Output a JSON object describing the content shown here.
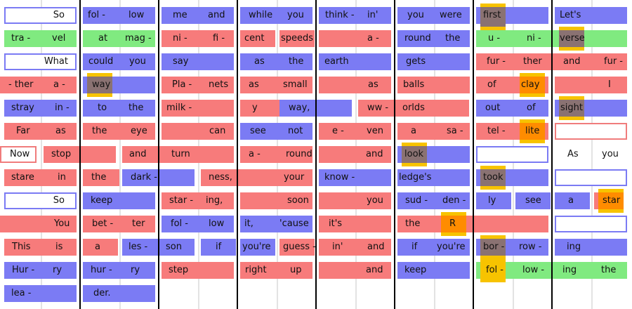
{
  "palette": {
    "pink": "#f77b7b",
    "blue": "#7b7bf4",
    "green": "#80ea80",
    "red_outline": "#f07c7c",
    "blue_outline": "#7b7bf4",
    "highlight_dark": "#8a7272",
    "highlight_gold": "#f7c300",
    "highlight_orange": "#ff8c00",
    "bar_line": "#000000",
    "guide_line": "#e3e3e3"
  },
  "rows": [
    [
      {
        "text": "So",
        "color": "blue",
        "outline": true
      },
      {
        "text": "fol -",
        "color": "blue"
      },
      {
        "text": "low",
        "color": "blue"
      },
      {
        "text": "me",
        "color": "blue"
      },
      {
        "text": "and",
        "color": "blue"
      },
      {
        "text": "while",
        "color": "blue"
      },
      {
        "text": "you",
        "color": "blue"
      },
      {
        "text": "think -",
        "color": "blue"
      },
      {
        "text": "in'",
        "color": "blue"
      },
      {
        "text": "you",
        "color": "blue"
      },
      {
        "text": "were",
        "color": "blue"
      },
      {
        "text": "first",
        "color": "blue",
        "highlight": "dark"
      },
      {
        "text": "Let's",
        "color": "blue"
      }
    ],
    [
      {
        "text": "tra -",
        "color": "green"
      },
      {
        "text": "vel",
        "color": "green"
      },
      {
        "text": "at",
        "color": "green"
      },
      {
        "text": "mag -",
        "color": "green"
      },
      {
        "text": "ni -",
        "color": "pink"
      },
      {
        "text": "fi -",
        "color": "pink"
      },
      {
        "text": "cent",
        "color": "pink"
      },
      {
        "text": "speeds",
        "color": "pink"
      },
      {
        "text": "a -",
        "color": "pink"
      },
      {
        "text": "round",
        "color": "blue"
      },
      {
        "text": "the",
        "color": "blue"
      },
      {
        "text": "u -",
        "color": "green"
      },
      {
        "text": "ni -",
        "color": "green"
      },
      {
        "text": "verse",
        "color": "green",
        "highlight": "dark"
      }
    ],
    [
      {
        "text": "What",
        "color": "blue",
        "outline": true
      },
      {
        "text": "could",
        "color": "blue"
      },
      {
        "text": "you",
        "color": "blue"
      },
      {
        "text": "say",
        "color": "blue"
      },
      {
        "text": "as",
        "color": "blue"
      },
      {
        "text": "the",
        "color": "blue"
      },
      {
        "text": "earth",
        "color": "blue"
      },
      {
        "text": "gets",
        "color": "blue"
      },
      {
        "text": "fur -",
        "color": "pink"
      },
      {
        "text": "ther",
        "color": "pink"
      },
      {
        "text": "and",
        "color": "pink"
      },
      {
        "text": "fur -",
        "color": "pink"
      }
    ],
    [
      {
        "text": "- ther",
        "color": "pink"
      },
      {
        "text": "a -",
        "color": "pink"
      },
      {
        "text": "way",
        "color": "blue",
        "highlight": "dark"
      },
      {
        "text": "Pla -",
        "color": "pink"
      },
      {
        "text": "nets",
        "color": "pink"
      },
      {
        "text": "as",
        "color": "pink"
      },
      {
        "text": "small",
        "color": "pink"
      },
      {
        "text": "as",
        "color": "pink"
      },
      {
        "text": "balls",
        "color": "pink"
      },
      {
        "text": "of",
        "color": "pink"
      },
      {
        "text": "clay",
        "color": "pink",
        "highlight": "orange"
      },
      {
        "text": "I",
        "color": "pink"
      }
    ],
    [
      {
        "text": "stray",
        "color": "blue"
      },
      {
        "text": "in -",
        "color": "blue"
      },
      {
        "text": "to",
        "color": "blue"
      },
      {
        "text": "the",
        "color": "blue"
      },
      {
        "text": "milk -",
        "color": "pink"
      },
      {
        "text": "y",
        "color": "pink"
      },
      {
        "text": "way,",
        "color": "blue"
      },
      {
        "text": "ww -",
        "color": "pink"
      },
      {
        "text": "orlds",
        "color": "pink"
      },
      {
        "text": "out",
        "color": "blue"
      },
      {
        "text": "of",
        "color": "blue"
      },
      {
        "text": "sight",
        "color": "blue",
        "highlight": "dark"
      }
    ],
    [
      {
        "text": "Far",
        "color": "pink"
      },
      {
        "text": "as",
        "color": "pink"
      },
      {
        "text": "the",
        "color": "pink"
      },
      {
        "text": "eye",
        "color": "pink"
      },
      {
        "text": "can",
        "color": "pink"
      },
      {
        "text": "see",
        "color": "blue"
      },
      {
        "text": "not",
        "color": "blue"
      },
      {
        "text": "e -",
        "color": "pink"
      },
      {
        "text": "ven",
        "color": "pink"
      },
      {
        "text": "a",
        "color": "pink"
      },
      {
        "text": "sa -",
        "color": "pink"
      },
      {
        "text": "tel -",
        "color": "pink"
      },
      {
        "text": "lite",
        "color": "pink",
        "highlight": "orange"
      }
    ],
    [
      {
        "text": "Now",
        "color": "pink",
        "outline": true
      },
      {
        "text": "stop",
        "color": "pink"
      },
      {
        "text": "and",
        "color": "pink"
      },
      {
        "text": "turn",
        "color": "pink"
      },
      {
        "text": "a -",
        "color": "pink"
      },
      {
        "text": "round",
        "color": "pink"
      },
      {
        "text": "and",
        "color": "pink"
      },
      {
        "text": "look",
        "color": "blue",
        "highlight": "dark"
      },
      {
        "text": "As",
        "color": "blue"
      },
      {
        "text": "you",
        "color": "blue"
      }
    ],
    [
      {
        "text": "stare",
        "color": "pink"
      },
      {
        "text": "in",
        "color": "pink"
      },
      {
        "text": "the",
        "color": "pink"
      },
      {
        "text": "dark -",
        "color": "blue"
      },
      {
        "text": "ness,",
        "color": "pink"
      },
      {
        "text": "your",
        "color": "pink"
      },
      {
        "text": "know -",
        "color": "blue"
      },
      {
        "text": "ledge's",
        "color": "blue"
      },
      {
        "text": "took",
        "color": "blue",
        "highlight": "dark"
      }
    ],
    [
      {
        "text": "So",
        "color": "blue",
        "outline": true
      },
      {
        "text": "keep",
        "color": "blue"
      },
      {
        "text": "star -",
        "color": "pink"
      },
      {
        "text": "ing,",
        "color": "pink"
      },
      {
        "text": "soon",
        "color": "pink"
      },
      {
        "text": "you",
        "color": "pink"
      },
      {
        "text": "sud -",
        "color": "blue"
      },
      {
        "text": "den -",
        "color": "blue"
      },
      {
        "text": "ly",
        "color": "blue"
      },
      {
        "text": "see",
        "color": "blue"
      },
      {
        "text": "a",
        "color": "blue"
      },
      {
        "text": "star",
        "color": "pink",
        "highlight": "orange"
      }
    ],
    [
      {
        "text": "You",
        "color": "pink"
      },
      {
        "text": "bet -",
        "color": "pink"
      },
      {
        "text": "ter",
        "color": "pink"
      },
      {
        "text": "fol -",
        "color": "blue"
      },
      {
        "text": "low",
        "color": "blue"
      },
      {
        "text": "it,",
        "color": "blue"
      },
      {
        "text": "'cause",
        "color": "blue"
      },
      {
        "text": "it's",
        "color": "pink"
      },
      {
        "text": "the",
        "color": "pink"
      },
      {
        "text": "R",
        "color": "pink",
        "highlight": "orange"
      }
    ],
    [
      {
        "text": "This",
        "color": "pink"
      },
      {
        "text": "is",
        "color": "pink"
      },
      {
        "text": "a",
        "color": "pink"
      },
      {
        "text": "les -",
        "color": "blue"
      },
      {
        "text": "son",
        "color": "blue"
      },
      {
        "text": "if",
        "color": "blue"
      },
      {
        "text": "you're",
        "color": "blue"
      },
      {
        "text": "guess -",
        "color": "pink"
      },
      {
        "text": "in'",
        "color": "pink"
      },
      {
        "text": "and",
        "color": "pink"
      },
      {
        "text": "if",
        "color": "blue"
      },
      {
        "text": "you're",
        "color": "blue"
      },
      {
        "text": "bor -",
        "color": "blue",
        "highlight": "dark"
      },
      {
        "text": "row -",
        "color": "blue"
      },
      {
        "text": "ing",
        "color": "blue"
      }
    ],
    [
      {
        "text": "Hur -",
        "color": "blue"
      },
      {
        "text": "ry",
        "color": "blue"
      },
      {
        "text": "hur -",
        "color": "blue"
      },
      {
        "text": "ry",
        "color": "blue"
      },
      {
        "text": "step",
        "color": "pink"
      },
      {
        "text": "right",
        "color": "pink"
      },
      {
        "text": "up",
        "color": "pink"
      },
      {
        "text": "and",
        "color": "pink"
      },
      {
        "text": "keep",
        "color": "blue"
      },
      {
        "text": "fol -",
        "color": "green",
        "highlight": "gold"
      },
      {
        "text": "low -",
        "color": "green"
      },
      {
        "text": "ing",
        "color": "green"
      },
      {
        "text": "the",
        "color": "green"
      }
    ],
    [
      {
        "text": "lea -",
        "color": "blue"
      },
      {
        "text": "der.",
        "color": "blue"
      }
    ]
  ]
}
